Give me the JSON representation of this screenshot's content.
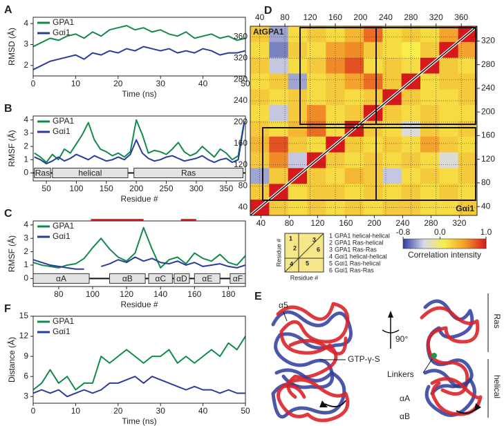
{
  "chart_data": [
    {
      "type": "line",
      "label": "A",
      "xlabel": "Time (ns)",
      "ylabel": "RMSD (Å)",
      "x": [
        0,
        2,
        4,
        6,
        8,
        10,
        12,
        14,
        16,
        18,
        20,
        22,
        24,
        26,
        28,
        30,
        32,
        34,
        36,
        38,
        40,
        42,
        44,
        46,
        48,
        50
      ],
      "series": [
        {
          "name": "GPA1",
          "color": "#0f8a4a",
          "values": [
            2.9,
            3.1,
            3.3,
            3.2,
            3.4,
            3.5,
            3.3,
            3.6,
            3.4,
            3.7,
            3.8,
            3.9,
            3.7,
            3.8,
            3.6,
            3.7,
            3.5,
            3.4,
            3.6,
            3.3,
            3.4,
            3.5,
            3.3,
            3.4,
            3.2,
            3.3
          ]
        },
        {
          "name": "Gαi1",
          "color": "#2b3a9e",
          "values": [
            1.8,
            2.0,
            2.2,
            2.3,
            2.4,
            2.5,
            2.3,
            2.6,
            2.5,
            2.7,
            2.6,
            2.8,
            2.7,
            2.9,
            2.8,
            2.7,
            2.8,
            2.6,
            2.7,
            2.6,
            2.8,
            2.7,
            2.5,
            2.6,
            2.6,
            2.7
          ]
        }
      ],
      "xlim": [
        0,
        50
      ],
      "xticks": [
        0,
        10,
        20,
        30,
        40,
        50
      ],
      "ylim": [
        1.5,
        4.3
      ],
      "yticks": [
        2,
        3,
        4
      ],
      "legend": "upper left"
    },
    {
      "type": "line",
      "label": "B",
      "xlabel": "Residue #",
      "ylabel": "RMSF (Å)",
      "x": [
        30,
        40,
        50,
        60,
        70,
        80,
        90,
        100,
        110,
        120,
        130,
        140,
        150,
        160,
        170,
        180,
        190,
        200,
        210,
        220,
        230,
        240,
        250,
        260,
        270,
        280,
        290,
        300,
        310,
        320,
        330,
        340,
        350,
        360,
        370,
        380
      ],
      "series": [
        {
          "name": "GPA1",
          "color": "#0f8a4a",
          "values": [
            1.5,
            1.2,
            0.8,
            1.4,
            1.0,
            1.8,
            1.5,
            2.2,
            2.9,
            3.8,
            2.5,
            1.8,
            1.6,
            1.3,
            1.5,
            1.2,
            1.6,
            4.0,
            2.9,
            1.5,
            1.7,
            1.6,
            1.4,
            1.8,
            2.3,
            1.6,
            1.3,
            1.5,
            2.0,
            1.6,
            1.2,
            1.8,
            1.5,
            1.0,
            1.3,
            3.9
          ]
        },
        {
          "name": "Gαi1",
          "color": "#2b3a9e",
          "values": [
            1.2,
            1.0,
            0.7,
            0.9,
            1.2,
            0.9,
            1.1,
            1.4,
            1.2,
            1.0,
            1.3,
            1.1,
            0.9,
            1.0,
            1.2,
            1.0,
            1.4,
            2.5,
            1.5,
            1.1,
            0.9,
            1.0,
            1.2,
            1.3,
            1.1,
            0.9,
            1.0,
            1.1,
            1.3,
            1.0,
            0.8,
            1.0,
            1.1,
            0.8,
            1.0,
            3.8
          ]
        }
      ],
      "xlim": [
        28,
        382
      ],
      "xticks": [
        50,
        100,
        150,
        200,
        250,
        300,
        350
      ],
      "ylim": [
        -0.6,
        4.3
      ],
      "yticks": [
        0,
        1,
        2,
        3,
        4
      ],
      "legend": "upper left",
      "domains": [
        {
          "label": "Ras",
          "start": 30,
          "end": 57
        },
        {
          "label": "helical",
          "start": 60,
          "end": 186
        },
        {
          "label": "Ras",
          "start": 196,
          "end": 378
        }
      ]
    },
    {
      "type": "line",
      "label": "C",
      "xlabel": "Residue #",
      "ylabel": "RMSF (Å)",
      "x": [
        65,
        70,
        75,
        80,
        85,
        90,
        95,
        100,
        105,
        110,
        115,
        120,
        125,
        130,
        135,
        140,
        145,
        150,
        155,
        160,
        165,
        170,
        175,
        180,
        185,
        190
      ],
      "series": [
        {
          "name": "GPA1",
          "color": "#0f8a4a",
          "values": [
            1.2,
            1.0,
            0.9,
            0.8,
            1.0,
            1.1,
            1.5,
            2.3,
            3.0,
            2.2,
            1.6,
            1.3,
            1.9,
            3.8,
            2.2,
            0.8,
            1.4,
            1.6,
            1.1,
            1.9,
            1.5,
            1.3,
            1.8,
            1.2,
            1.0,
            1.7
          ]
        },
        {
          "name": "Gαi1",
          "color": "#2b3a9e",
          "values": [
            1.4,
            1.2,
            1.0,
            0.9,
            0.8,
            0.7,
            0.7,
            null,
            0.9,
            1.1,
            1.4,
            1.2,
            1.6,
            1.3,
            1.5,
            1.2,
            1.1,
            1.3,
            1.0,
            1.2,
            0.9,
            1.0,
            1.1,
            0.9,
            0.8,
            1.0
          ]
        }
      ],
      "xlim": [
        65,
        190
      ],
      "xticks": [
        80,
        100,
        120,
        140,
        160,
        180
      ],
      "ylim": [
        -0.6,
        4.3
      ],
      "yticks": [
        0,
        1,
        2,
        3,
        4
      ],
      "legend": "upper left",
      "domains": [
        {
          "label": "αA",
          "start": 65,
          "end": 98
        },
        {
          "label": "αB",
          "start": 110,
          "end": 131
        },
        {
          "label": "αC",
          "start": 133,
          "end": 147
        },
        {
          "label": "αD",
          "start": 148,
          "end": 157
        },
        {
          "label": "αE",
          "start": 160,
          "end": 175
        },
        {
          "label": "αF",
          "start": 181,
          "end": 190
        }
      ],
      "highlights": [
        {
          "start": 99,
          "end": 130
        },
        {
          "start": 152,
          "end": 161
        }
      ],
      "highlight_color": "#e8252a"
    },
    {
      "type": "heatmap",
      "label": "D",
      "upper_label": "AtGPA1",
      "lower_label": "Gαi1",
      "matrix": [
        [
          0.3,
          -0.5,
          0.2,
          0.3,
          0.2,
          0.4,
          0.7,
          0.2,
          0.3,
          0.2,
          0.5,
          1.0
        ],
        [
          0.2,
          -0.6,
          0.3,
          0.2,
          0.5,
          0.6,
          0.3,
          0.2,
          0.1,
          0.3,
          1.0,
          0.5
        ],
        [
          0.3,
          -0.4,
          0.2,
          0.3,
          0.6,
          0.8,
          0.2,
          0.3,
          0.2,
          1.0,
          0.3,
          0.2
        ],
        [
          0.2,
          0.3,
          -0.5,
          0.2,
          0.3,
          0.5,
          0.7,
          0.3,
          1.0,
          0.2,
          0.3,
          0.3
        ],
        [
          0.3,
          0.2,
          0.3,
          0.2,
          0.3,
          0.2,
          0.3,
          1.0,
          0.3,
          0.2,
          0.2,
          0.3
        ],
        [
          0.2,
          -0.4,
          0.3,
          0.6,
          0.2,
          0.3,
          1.0,
          0.3,
          0.2,
          0.3,
          0.2,
          0.2
        ],
        [
          0.3,
          0.2,
          0.4,
          0.7,
          0.2,
          1.0,
          0.3,
          0.2,
          -0.3,
          0.3,
          0.2,
          0.3
        ],
        [
          0.4,
          0.8,
          0.3,
          0.2,
          1.0,
          0.3,
          0.2,
          0.3,
          0.2,
          0.5,
          0.3,
          0.2
        ],
        [
          0.3,
          0.6,
          -0.4,
          1.0,
          0.3,
          0.2,
          0.3,
          0.2,
          0.3,
          0.2,
          -0.3,
          0.3
        ],
        [
          -0.5,
          0.3,
          1.0,
          0.3,
          0.2,
          0.4,
          0.3,
          -0.4,
          0.2,
          0.3,
          0.2,
          0.3
        ],
        [
          0.3,
          1.0,
          0.2,
          0.3,
          0.3,
          0.2,
          0.3,
          0.2,
          0.3,
          0.2,
          0.3,
          0.2
        ],
        [
          1.0,
          0.3,
          0.2,
          0.3,
          0.2,
          0.3,
          0.2,
          0.3,
          0.3,
          0.2,
          0.2,
          0.3
        ]
      ],
      "xlim": [
        25,
        385
      ],
      "xticks": [
        40,
        80,
        120,
        160,
        200,
        240,
        280,
        320,
        360
      ],
      "ylim": [
        25,
        380
      ],
      "yticks": [
        40,
        80,
        120,
        160,
        200,
        240,
        280,
        320,
        360
      ],
      "x2lim": [
        25,
        345
      ],
      "x2ticks": [
        40,
        80,
        120,
        160,
        200,
        240,
        280,
        320
      ],
      "y2lim": [
        25,
        345
      ],
      "y2ticks": [
        40,
        80,
        120,
        160,
        200,
        240,
        280,
        320
      ],
      "grid": true,
      "clim": [
        -0.8,
        1.0
      ],
      "colorscale": [
        "#2c3fa0",
        "#d8d8e8",
        "#f7ee4a",
        "#f39a2a",
        "#d7191c"
      ],
      "colorbar_label": "Correlation intensity",
      "colorbar_ticks": [
        -0.8,
        {
          "value": 0,
          "label": "0.0"
        },
        {
          "value": 1,
          "label": "1.0"
        }
      ],
      "inset": {
        "xlabel": "Residue #",
        "ylabel": "Residue #",
        "items": [
          {
            "number": "1",
            "label": "GPA1 helical-helical"
          },
          {
            "number": "2",
            "label": "GPA1 Ras-helical"
          },
          {
            "number": "3",
            "label": "GPA1 Ras-Ras"
          },
          {
            "number": "4",
            "label": "Gαi1 helical-helical"
          },
          {
            "number": "5",
            "label": "Gαi1 Ras-helical"
          },
          {
            "number": "6",
            "label": "Gαi1 Ras-Ras"
          }
        ]
      }
    },
    {
      "type": "line",
      "label": "F",
      "xlabel": "Time (ns)",
      "ylabel": "Distance (Å)",
      "x": [
        0,
        2,
        4,
        6,
        8,
        10,
        12,
        14,
        16,
        18,
        20,
        22,
        24,
        26,
        28,
        30,
        32,
        34,
        36,
        38,
        40,
        42,
        44,
        46,
        48,
        50
      ],
      "series": [
        {
          "name": "GPA1",
          "color": "#0f8a4a",
          "values": [
            4,
            5,
            7,
            5,
            6,
            4,
            5,
            5,
            9,
            8,
            9,
            10,
            9,
            8,
            9,
            9,
            10,
            8,
            9,
            8,
            9,
            10,
            9,
            11,
            10,
            12
          ]
        },
        {
          "name": "Gαi1",
          "color": "#2b3a9e",
          "values": [
            3.5,
            4,
            3.5,
            4,
            3,
            3.5,
            4,
            3.5,
            4,
            5,
            5,
            5.5,
            6,
            5,
            6,
            5.5,
            5,
            4.5,
            4,
            4.5,
            4,
            4,
            3.5,
            4,
            3.5,
            3.5
          ]
        }
      ],
      "xlim": [
        0,
        50
      ],
      "xticks": [
        0,
        10,
        20,
        30,
        40,
        50
      ],
      "ylim": [
        2,
        15
      ],
      "yticks": [
        3,
        6,
        9,
        12,
        15
      ],
      "legend": "upper left"
    }
  ],
  "structure_panel": {
    "label": "E",
    "annotations": [
      "α5",
      "GTP-γ-S",
      "90°",
      "Ras",
      "helical",
      "Linkers",
      "αA",
      "αB"
    ]
  }
}
